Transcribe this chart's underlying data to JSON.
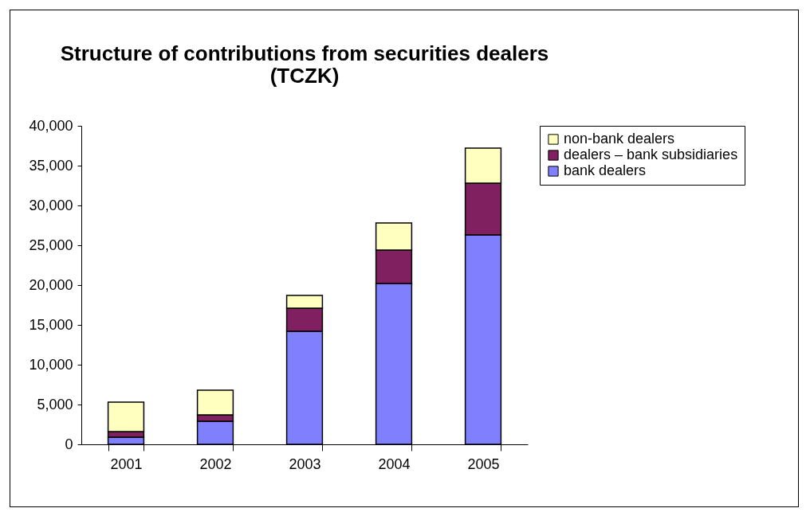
{
  "chart_data": {
    "type": "bar",
    "title": "Structure of contributions from securities dealers (TCZK)",
    "categories": [
      "2001",
      "2002",
      "2003",
      "2004",
      "2005"
    ],
    "stacked": true,
    "series": [
      {
        "name": "bank dealers",
        "color": "#8080ff",
        "values": [
          900,
          2900,
          14200,
          20200,
          26300
        ]
      },
      {
        "name": "dealers – bank subsidiaries",
        "color": "#802060",
        "values": [
          700,
          800,
          2900,
          4200,
          6500
        ]
      },
      {
        "name": "non-bank dealers",
        "color": "#ffffc0",
        "values": [
          3700,
          3100,
          1600,
          3400,
          4400
        ]
      }
    ],
    "ylim": [
      0,
      40000
    ],
    "yticks": [
      0,
      {
        "value": 5000,
        "label": "5,000"
      },
      {
        "value": 10000,
        "label": "10,000"
      },
      {
        "value": 15000,
        "label": "15,000"
      },
      {
        "value": 20000,
        "label": "20,000"
      },
      {
        "value": 25000,
        "label": "25,000"
      },
      {
        "value": 30000,
        "label": "30,000"
      },
      {
        "value": 35000,
        "label": "35,000"
      },
      {
        "value": 40000,
        "label": "40,000"
      }
    ],
    "grid": false,
    "legend": "right"
  }
}
